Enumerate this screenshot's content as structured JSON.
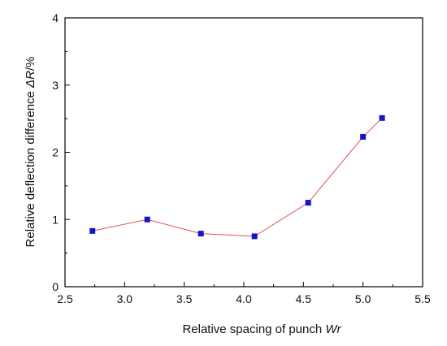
{
  "chart_data": {
    "type": "line",
    "xlabel": "Relative spacing of punch ",
    "xlabel_italic": "Wr",
    "ylabel": "Relative deflection difference ",
    "ylabel_italic": "ΔR",
    "ylabel_suffix": "/%",
    "xlim": [
      2.5,
      5.5
    ],
    "ylim": [
      0,
      4
    ],
    "xticks": [
      "2.5",
      "3.0",
      "3.5",
      "4.0",
      "4.5",
      "5.0",
      "5.5"
    ],
    "yticks": [
      "0",
      "1",
      "2",
      "3",
      "4"
    ],
    "grid": false,
    "legend": "none",
    "series": [
      {
        "x": [
          2.73,
          3.19,
          3.64,
          4.09,
          4.54,
          5.0,
          5.16
        ],
        "y": [
          0.83,
          1.0,
          0.79,
          0.75,
          1.25,
          2.23,
          2.51
        ],
        "marker": "square",
        "marker_color": "#1414c8",
        "line_color": "#e05555"
      }
    ]
  }
}
